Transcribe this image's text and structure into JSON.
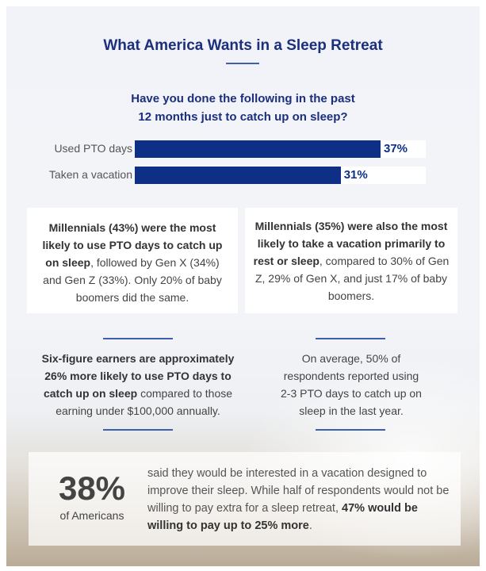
{
  "title": "What America Wants in a Sleep Retreat",
  "question": [
    "Have you done the following in the past",
    "12 months just to catch up on sleep?"
  ],
  "chart_data": {
    "type": "bar",
    "orientation": "horizontal",
    "categories": [
      "Used PTO days",
      "Taken a vacation"
    ],
    "values": [
      37,
      31
    ],
    "value_labels": [
      "37%",
      "31%"
    ],
    "title": "Have you done the following in the past 12 months just to catch up on sleep?",
    "xlabel": "",
    "ylabel": "",
    "bar_color": "#0d2f86",
    "grid": false
  },
  "boxes": [
    {
      "segments": [
        {
          "text": "Millennials (43%) were the most likely to use PTO days to catch up on sleep",
          "bold": true
        },
        {
          "text": ", followed by Gen X (34%) and Gen Z (33%). Only 20% of baby boomers did the same.",
          "bold": false
        }
      ]
    },
    {
      "segments": [
        {
          "text": "Millennials (35%) were also the most likely to take a vacation primarily to rest or sleep",
          "bold": true
        },
        {
          "text": ", compared to 30% of Gen Z, 29% of Gen X, and just 17% of baby boomers.",
          "bold": false
        }
      ]
    }
  ],
  "stats": [
    {
      "segments": [
        {
          "text": "Six-figure earners are approximately 26% more likely to use PTO days to catch up on sleep",
          "bold": true
        },
        {
          "text": " compared to those earning under $100,000 annually.",
          "bold": false
        }
      ]
    },
    {
      "segments": [
        {
          "text": "On average, 50% of respondents reported using 2-3 PTO days to catch up on sleep in the last year.",
          "bold": false
        }
      ]
    }
  ],
  "highlight": {
    "value": "38%",
    "label": "of Americans",
    "text": "said they would be interested in a vacation designed to improve their sleep. While half of respondents would not be willing to pay extra for a sleep retreat, ",
    "bold_text": "47% would be willing to pay up to 25% more",
    "end": "."
  },
  "colors": {
    "accent": "#1c2f7c",
    "bar": "#0d2f86",
    "rule": "#3c5fb0"
  }
}
